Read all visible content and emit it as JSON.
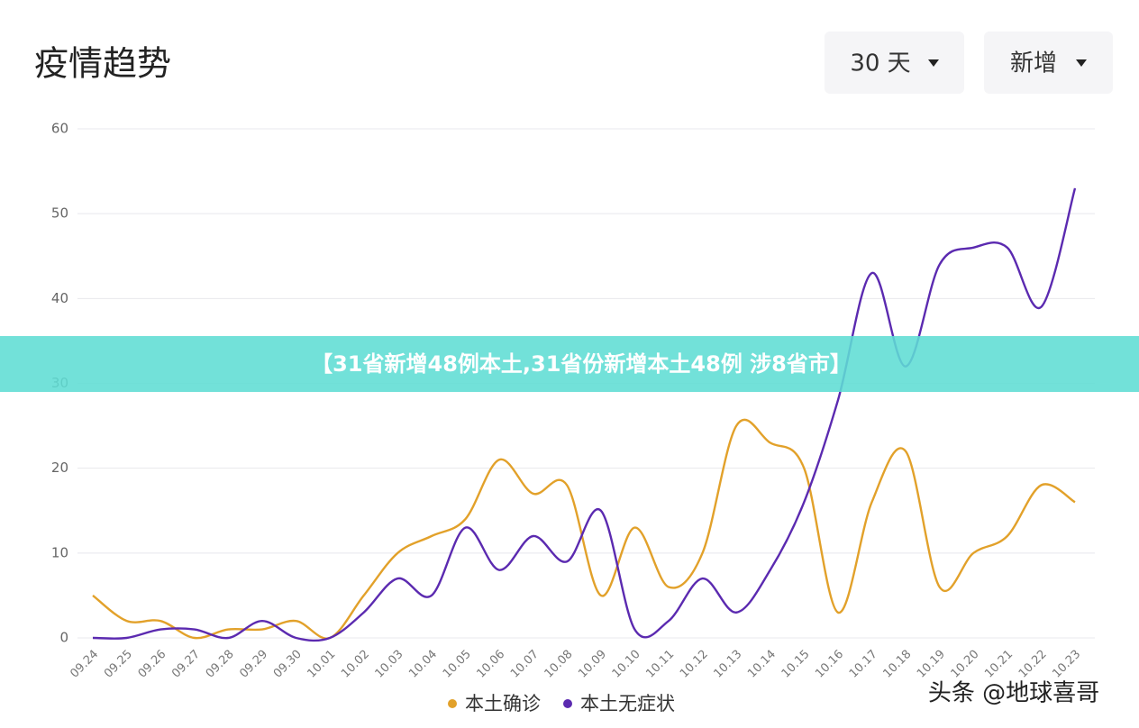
{
  "chart_data": {
    "type": "line",
    "title": "疫情趋势",
    "categories": [
      "09.24",
      "09.25",
      "09.26",
      "09.27",
      "09.28",
      "09.29",
      "09.30",
      "10.01",
      "10.02",
      "10.03",
      "10.04",
      "10.05",
      "10.06",
      "10.07",
      "10.08",
      "10.09",
      "10.10",
      "10.11",
      "10.12",
      "10.13",
      "10.14",
      "10.15",
      "10.16",
      "10.17",
      "10.18",
      "10.19",
      "10.20",
      "10.21",
      "10.22",
      "10.23"
    ],
    "series": [
      {
        "name": "本土确诊",
        "color": "#e2a12a",
        "values": [
          5,
          2,
          2,
          0,
          1,
          1,
          2,
          0,
          5,
          10,
          12,
          14,
          21,
          17,
          18,
          5,
          13,
          6,
          10,
          25,
          23,
          20,
          3,
          16,
          22,
          6,
          10,
          12,
          18,
          16
        ]
      },
      {
        "name": "本土无症状",
        "color": "#5b2ab0",
        "values": [
          0,
          0,
          1,
          1,
          0,
          2,
          0,
          0,
          3,
          7,
          5,
          13,
          8,
          12,
          9,
          15,
          1,
          2,
          7,
          3,
          8,
          16,
          28,
          43,
          32,
          44,
          46,
          46,
          39,
          53
        ]
      }
    ],
    "ylim": [
      0,
      60
    ],
    "yticks": [
      0,
      10,
      20,
      30,
      40,
      50,
      60
    ],
    "grid": true,
    "legend": "bottom"
  },
  "controls": {
    "range": "30 天",
    "metric": "新增"
  },
  "banner": "【31省新增48例本土,31省份新增本土48例 涉8省市】",
  "watermark": "头条 @地球喜哥"
}
